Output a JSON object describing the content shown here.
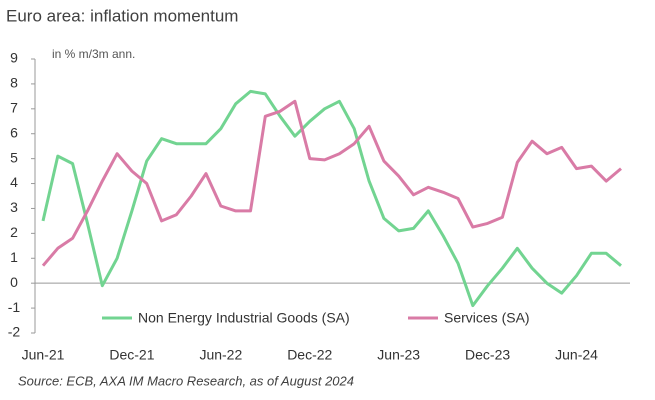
{
  "chart_data": {
    "type": "line",
    "title": "Euro area: inflation momentum",
    "y_label": "in % m/3m ann.",
    "source": "Source: ECB, AXA IM Macro Research, as of August 2024",
    "categories": [
      "Jun-21",
      null,
      null,
      null,
      null,
      null,
      "Dec-21",
      null,
      null,
      null,
      null,
      null,
      "Jun-22",
      null,
      null,
      null,
      null,
      null,
      "Dec-22",
      null,
      null,
      null,
      null,
      null,
      "Jun-23",
      null,
      null,
      null,
      null,
      null,
      "Dec-23",
      null,
      null,
      null,
      null,
      null,
      "Jun-24",
      null,
      null,
      null
    ],
    "series": [
      {
        "name": "Non Energy Industrial Goods (SA)",
        "color": "#72d491",
        "values": [
          2.5,
          5.1,
          4.8,
          2.4,
          -0.1,
          1.0,
          2.9,
          4.9,
          5.8,
          5.6,
          5.6,
          5.6,
          6.2,
          7.2,
          7.7,
          7.6,
          6.7,
          5.9,
          6.5,
          7.0,
          7.3,
          6.2,
          4.1,
          2.6,
          2.1,
          2.2,
          2.9,
          1.9,
          0.8,
          -0.9,
          -0.1,
          0.6,
          1.4,
          0.6,
          0.0,
          -0.4,
          0.3,
          1.2,
          1.2,
          0.7
        ]
      },
      {
        "name": "Services (SA)",
        "color": "#d97ba6",
        "values": [
          0.7,
          1.4,
          1.8,
          2.9,
          4.1,
          5.2,
          4.5,
          4.0,
          2.5,
          2.75,
          3.5,
          4.4,
          3.1,
          2.9,
          2.9,
          6.7,
          6.9,
          7.3,
          5.0,
          4.95,
          5.2,
          5.6,
          6.3,
          4.9,
          4.3,
          3.55,
          3.85,
          3.65,
          3.4,
          2.25,
          2.4,
          2.65,
          4.85,
          5.7,
          5.2,
          5.45,
          4.6,
          4.7,
          4.1,
          4.6
        ]
      }
    ],
    "ylim": [
      -2,
      9
    ],
    "yticks": [
      -2,
      -1,
      0,
      1,
      2,
      3,
      4,
      5,
      6,
      7,
      8,
      9
    ],
    "grid": false
  }
}
